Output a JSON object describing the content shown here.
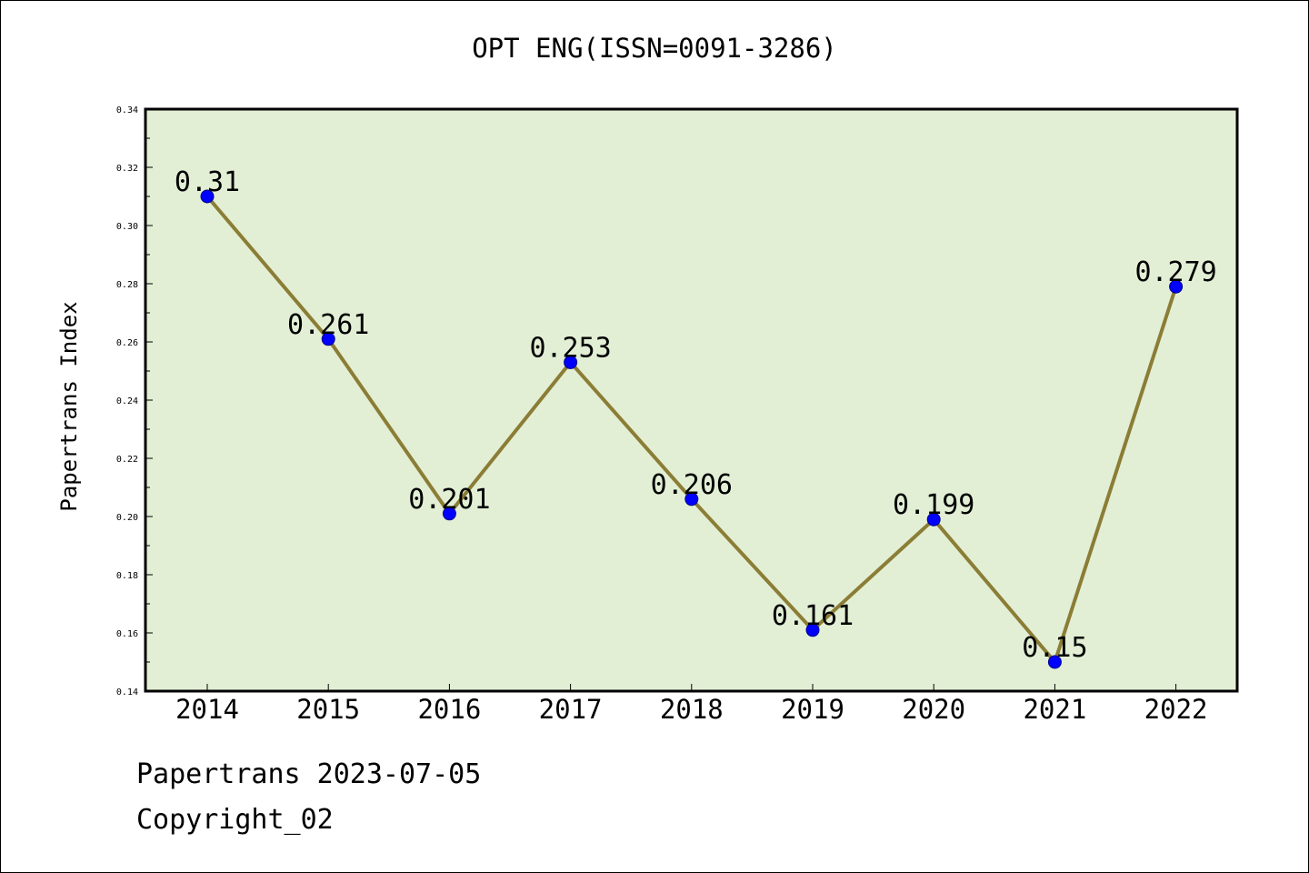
{
  "chart_data": {
    "type": "line",
    "title": "OPT ENG(ISSN=0091-3286)",
    "ylabel": "Papertrans Index",
    "xlabel": "",
    "categories": [
      "2014",
      "2015",
      "2016",
      "2017",
      "2018",
      "2019",
      "2020",
      "2021",
      "2022"
    ],
    "series": [
      {
        "values": [
          0.31,
          0.261,
          0.201,
          0.253,
          0.206,
          0.161,
          0.199,
          0.15,
          0.279
        ],
        "data_labels": [
          "0.31",
          "0.261",
          "0.201",
          "0.253",
          "0.206",
          "0.161",
          "0.199",
          "0.15",
          "0.279"
        ]
      }
    ],
    "ylim": [
      0.14,
      0.34
    ],
    "yticks": [
      "0.14",
      "0.16",
      "0.18",
      "0.20",
      "0.22",
      "0.24",
      "0.26",
      "0.28",
      "0.30",
      "0.32",
      "0.34"
    ],
    "grid": false,
    "colors": {
      "plot_background": "#e2efd5",
      "line": "#8b7d35",
      "marker": "#0000ff"
    }
  },
  "footer": {
    "date_text": "Papertrans 2023-07-05",
    "copyright_text": "Copyright_02"
  }
}
